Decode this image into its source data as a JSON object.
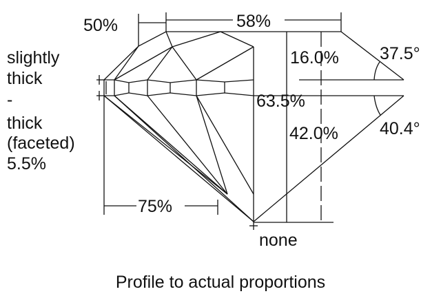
{
  "labels": {
    "crown_height_pct": "16.0%",
    "crown_angle": "37.5°",
    "table_pct": "58%",
    "star_length_pct": "50%",
    "total_depth_pct": "63.5%",
    "pavilion_depth_pct": "42.0%",
    "pavilion_angle": "40.4°",
    "lower_half_pct": "75%",
    "culet": "none",
    "girdle": [
      "slightly",
      "thick",
      "-",
      "thick",
      "(faceted)",
      "5.5%"
    ]
  },
  "caption": "Profile to actual proportions"
}
